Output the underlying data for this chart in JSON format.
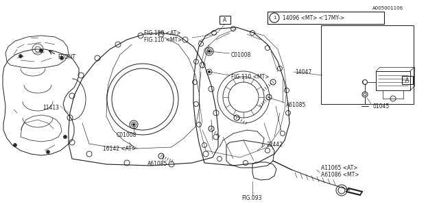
{
  "bg_color": "#ffffff",
  "line_color": "#1a1a1a",
  "fig_width": 6.4,
  "fig_height": 3.2,
  "dpi": 100,
  "font_size": 5.5,
  "labels": {
    "front": "FRONT",
    "fig093": "FIG.093",
    "a61085_top": "A61085",
    "a61085_mid": "A61085",
    "a61086": "A61086 <MT>",
    "a11065": "A11065 <AT>",
    "22442": "22442",
    "c01008_top": "C01008",
    "c01008_bot": "C01008",
    "i11413": "11413",
    "i16142": "16142 <AT>",
    "fig110_mt1": "FIG.110 <MT>",
    "fig110_mt2": "FIG.110 <MT>",
    "fig150_at": "FIG.150 <AT>",
    "14047": "14047",
    "14096": "14096 <MT> <'17MY->",
    "01045": "01045",
    "a005001106": "A005001106"
  }
}
